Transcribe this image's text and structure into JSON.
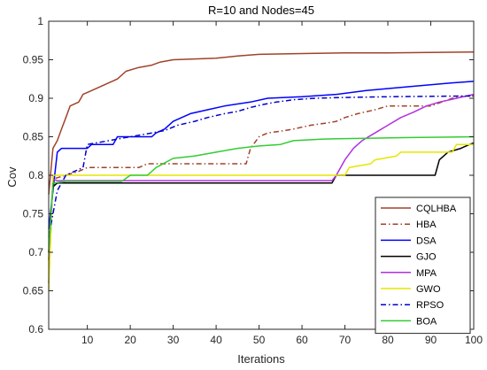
{
  "chart_data": {
    "type": "line",
    "title": "R=10 and Nodes=45",
    "xlabel": "Iterations",
    "ylabel": "Cov",
    "xlim": [
      1,
      100
    ],
    "ylim": [
      0.6,
      1.0
    ],
    "xticks": [
      10,
      20,
      30,
      40,
      50,
      60,
      70,
      80,
      90,
      100
    ],
    "yticks": [
      0.6,
      0.65,
      0.7,
      0.75,
      0.8,
      0.85,
      0.9,
      0.95,
      1
    ],
    "grid": false,
    "legend_position": "bottom-right",
    "series": [
      {
        "name": "CQLHBA",
        "color": "#A0432A",
        "dash": "solid",
        "points": [
          [
            1,
            0.775
          ],
          [
            2,
            0.835
          ],
          [
            3,
            0.845
          ],
          [
            4,
            0.86
          ],
          [
            5,
            0.875
          ],
          [
            6,
            0.89
          ],
          [
            8,
            0.895
          ],
          [
            9,
            0.905
          ],
          [
            11,
            0.91
          ],
          [
            13,
            0.915
          ],
          [
            15,
            0.92
          ],
          [
            17,
            0.925
          ],
          [
            19,
            0.935
          ],
          [
            22,
            0.94
          ],
          [
            25,
            0.943
          ],
          [
            27,
            0.947
          ],
          [
            30,
            0.95
          ],
          [
            35,
            0.951
          ],
          [
            40,
            0.952
          ],
          [
            45,
            0.955
          ],
          [
            50,
            0.957
          ],
          [
            60,
            0.958
          ],
          [
            70,
            0.959
          ],
          [
            80,
            0.959
          ],
          [
            100,
            0.96
          ]
        ]
      },
      {
        "name": "HBA",
        "color": "#A0432A",
        "dash": "dashdot",
        "points": [
          [
            1,
            0.69
          ],
          [
            2,
            0.795
          ],
          [
            5,
            0.8
          ],
          [
            8,
            0.805
          ],
          [
            10,
            0.81
          ],
          [
            22,
            0.81
          ],
          [
            24,
            0.815
          ],
          [
            47,
            0.815
          ],
          [
            48,
            0.835
          ],
          [
            50,
            0.85
          ],
          [
            52,
            0.855
          ],
          [
            56,
            0.858
          ],
          [
            58,
            0.86
          ],
          [
            62,
            0.865
          ],
          [
            66,
            0.868
          ],
          [
            68,
            0.87
          ],
          [
            70,
            0.875
          ],
          [
            73,
            0.88
          ],
          [
            77,
            0.885
          ],
          [
            80,
            0.89
          ],
          [
            90,
            0.89
          ],
          [
            95,
            0.9
          ],
          [
            97,
            0.902
          ],
          [
            100,
            0.903
          ]
        ]
      },
      {
        "name": "DSA",
        "color": "#0000FF",
        "dash": "solid",
        "points": [
          [
            1,
            0.73
          ],
          [
            2,
            0.78
          ],
          [
            3,
            0.83
          ],
          [
            4,
            0.835
          ],
          [
            10,
            0.835
          ],
          [
            11,
            0.84
          ],
          [
            16,
            0.84
          ],
          [
            17,
            0.85
          ],
          [
            25,
            0.85
          ],
          [
            26,
            0.855
          ],
          [
            28,
            0.86
          ],
          [
            30,
            0.87
          ],
          [
            34,
            0.88
          ],
          [
            38,
            0.885
          ],
          [
            42,
            0.89
          ],
          [
            48,
            0.895
          ],
          [
            52,
            0.9
          ],
          [
            60,
            0.902
          ],
          [
            68,
            0.905
          ],
          [
            75,
            0.91
          ],
          [
            85,
            0.915
          ],
          [
            95,
            0.92
          ],
          [
            100,
            0.922
          ]
        ]
      },
      {
        "name": "GJO",
        "color": "#000000",
        "dash": "solid",
        "points": [
          [
            1,
            0.7
          ],
          [
            2,
            0.785
          ],
          [
            3,
            0.79
          ],
          [
            67,
            0.79
          ],
          [
            68,
            0.8
          ],
          [
            91,
            0.8
          ],
          [
            92,
            0.82
          ],
          [
            94,
            0.83
          ],
          [
            97,
            0.835
          ],
          [
            99,
            0.84
          ],
          [
            100,
            0.842
          ]
        ]
      },
      {
        "name": "MPA",
        "color": "#B030E0",
        "dash": "solid",
        "points": [
          [
            1,
            0.66
          ],
          [
            2,
            0.795
          ],
          [
            3,
            0.793
          ],
          [
            67,
            0.793
          ],
          [
            68,
            0.8
          ],
          [
            70,
            0.82
          ],
          [
            72,
            0.835
          ],
          [
            74,
            0.845
          ],
          [
            77,
            0.855
          ],
          [
            80,
            0.865
          ],
          [
            83,
            0.875
          ],
          [
            86,
            0.882
          ],
          [
            89,
            0.89
          ],
          [
            92,
            0.895
          ],
          [
            96,
            0.9
          ],
          [
            100,
            0.905
          ]
        ]
      },
      {
        "name": "GWO",
        "color": "#E6E600",
        "dash": "solid",
        "points": [
          [
            1,
            0.65
          ],
          [
            2,
            0.8
          ],
          [
            70,
            0.8
          ],
          [
            71,
            0.81
          ],
          [
            76,
            0.815
          ],
          [
            77,
            0.82
          ],
          [
            82,
            0.825
          ],
          [
            83,
            0.83
          ],
          [
            95,
            0.83
          ],
          [
            96,
            0.84
          ],
          [
            100,
            0.84
          ]
        ]
      },
      {
        "name": "RPSO",
        "color": "#0000CC",
        "dash": "dashdot",
        "points": [
          [
            1,
            0.72
          ],
          [
            3,
            0.78
          ],
          [
            5,
            0.8
          ],
          [
            7,
            0.805
          ],
          [
            9,
            0.81
          ],
          [
            10,
            0.84
          ],
          [
            15,
            0.845
          ],
          [
            20,
            0.85
          ],
          [
            25,
            0.855
          ],
          [
            28,
            0.858
          ],
          [
            31,
            0.865
          ],
          [
            35,
            0.87
          ],
          [
            38,
            0.875
          ],
          [
            42,
            0.88
          ],
          [
            45,
            0.883
          ],
          [
            48,
            0.888
          ],
          [
            51,
            0.892
          ],
          [
            54,
            0.895
          ],
          [
            58,
            0.898
          ],
          [
            63,
            0.9
          ],
          [
            70,
            0.901
          ],
          [
            80,
            0.902
          ],
          [
            100,
            0.903
          ]
        ]
      },
      {
        "name": "BOA",
        "color": "#33CC33",
        "dash": "solid",
        "points": [
          [
            1,
            0.7
          ],
          [
            2,
            0.79
          ],
          [
            5,
            0.792
          ],
          [
            18,
            0.792
          ],
          [
            20,
            0.8
          ],
          [
            24,
            0.8
          ],
          [
            26,
            0.81
          ],
          [
            30,
            0.822
          ],
          [
            35,
            0.825
          ],
          [
            40,
            0.83
          ],
          [
            45,
            0.835
          ],
          [
            50,
            0.838
          ],
          [
            55,
            0.84
          ],
          [
            58,
            0.845
          ],
          [
            65,
            0.847
          ],
          [
            75,
            0.848
          ],
          [
            85,
            0.849
          ],
          [
            100,
            0.85
          ]
        ]
      }
    ]
  }
}
